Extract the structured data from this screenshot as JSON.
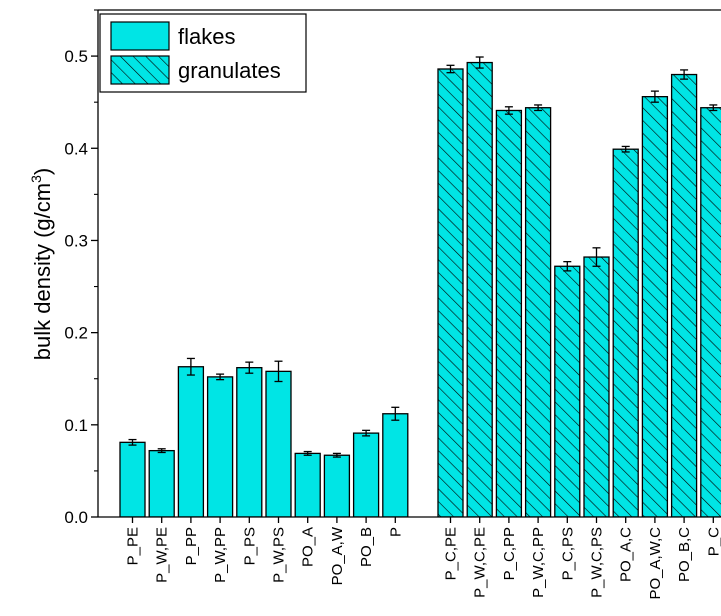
{
  "chart_data": {
    "type": "bar",
    "title": "",
    "xlabel": "",
    "ylabel": "bulk density (g/cm",
    "ylabel_sup": "3",
    "ylabel_close": ")",
    "ylim": [
      0,
      0.55
    ],
    "yticks": [
      0.0,
      0.1,
      0.2,
      0.3,
      0.4,
      0.5
    ],
    "ytick_labels": [
      "0.0",
      "0.1",
      "0.2",
      "0.3",
      "0.4",
      "0.5"
    ],
    "grid": false,
    "legend_position": "top-left",
    "fill_color": "#00e5e5",
    "edge_color": "#000000",
    "series": [
      {
        "name": "flakes",
        "pattern": "solid",
        "categories": [
          "P_PE",
          "P_W,PE",
          "P_PP",
          "P_W,PP",
          "P_PS",
          "P_W,PS",
          "PO_A",
          "PO_A,W",
          "PO_B",
          "P"
        ],
        "values": [
          0.081,
          0.072,
          0.163,
          0.152,
          0.162,
          0.158,
          0.069,
          0.067,
          0.091,
          0.112
        ],
        "errors": [
          0.003,
          0.002,
          0.009,
          0.003,
          0.006,
          0.011,
          0.002,
          0.002,
          0.003,
          0.007
        ]
      },
      {
        "name": "granulates",
        "pattern": "hatched",
        "categories": [
          "P_C,PE",
          "P_W,C,PE",
          "P_C,PP",
          "P_W,C,PP",
          "P_C,PS",
          "P_W,C,PS",
          "PO_A,C",
          "PO_A,W,C",
          "PO_B,C",
          "P_C"
        ],
        "values": [
          0.486,
          0.493,
          0.441,
          0.444,
          0.272,
          0.282,
          0.399,
          0.456,
          0.48,
          0.444
        ],
        "errors": [
          0.004,
          0.006,
          0.004,
          0.003,
          0.005,
          0.01,
          0.003,
          0.006,
          0.005,
          0.003
        ]
      }
    ]
  }
}
